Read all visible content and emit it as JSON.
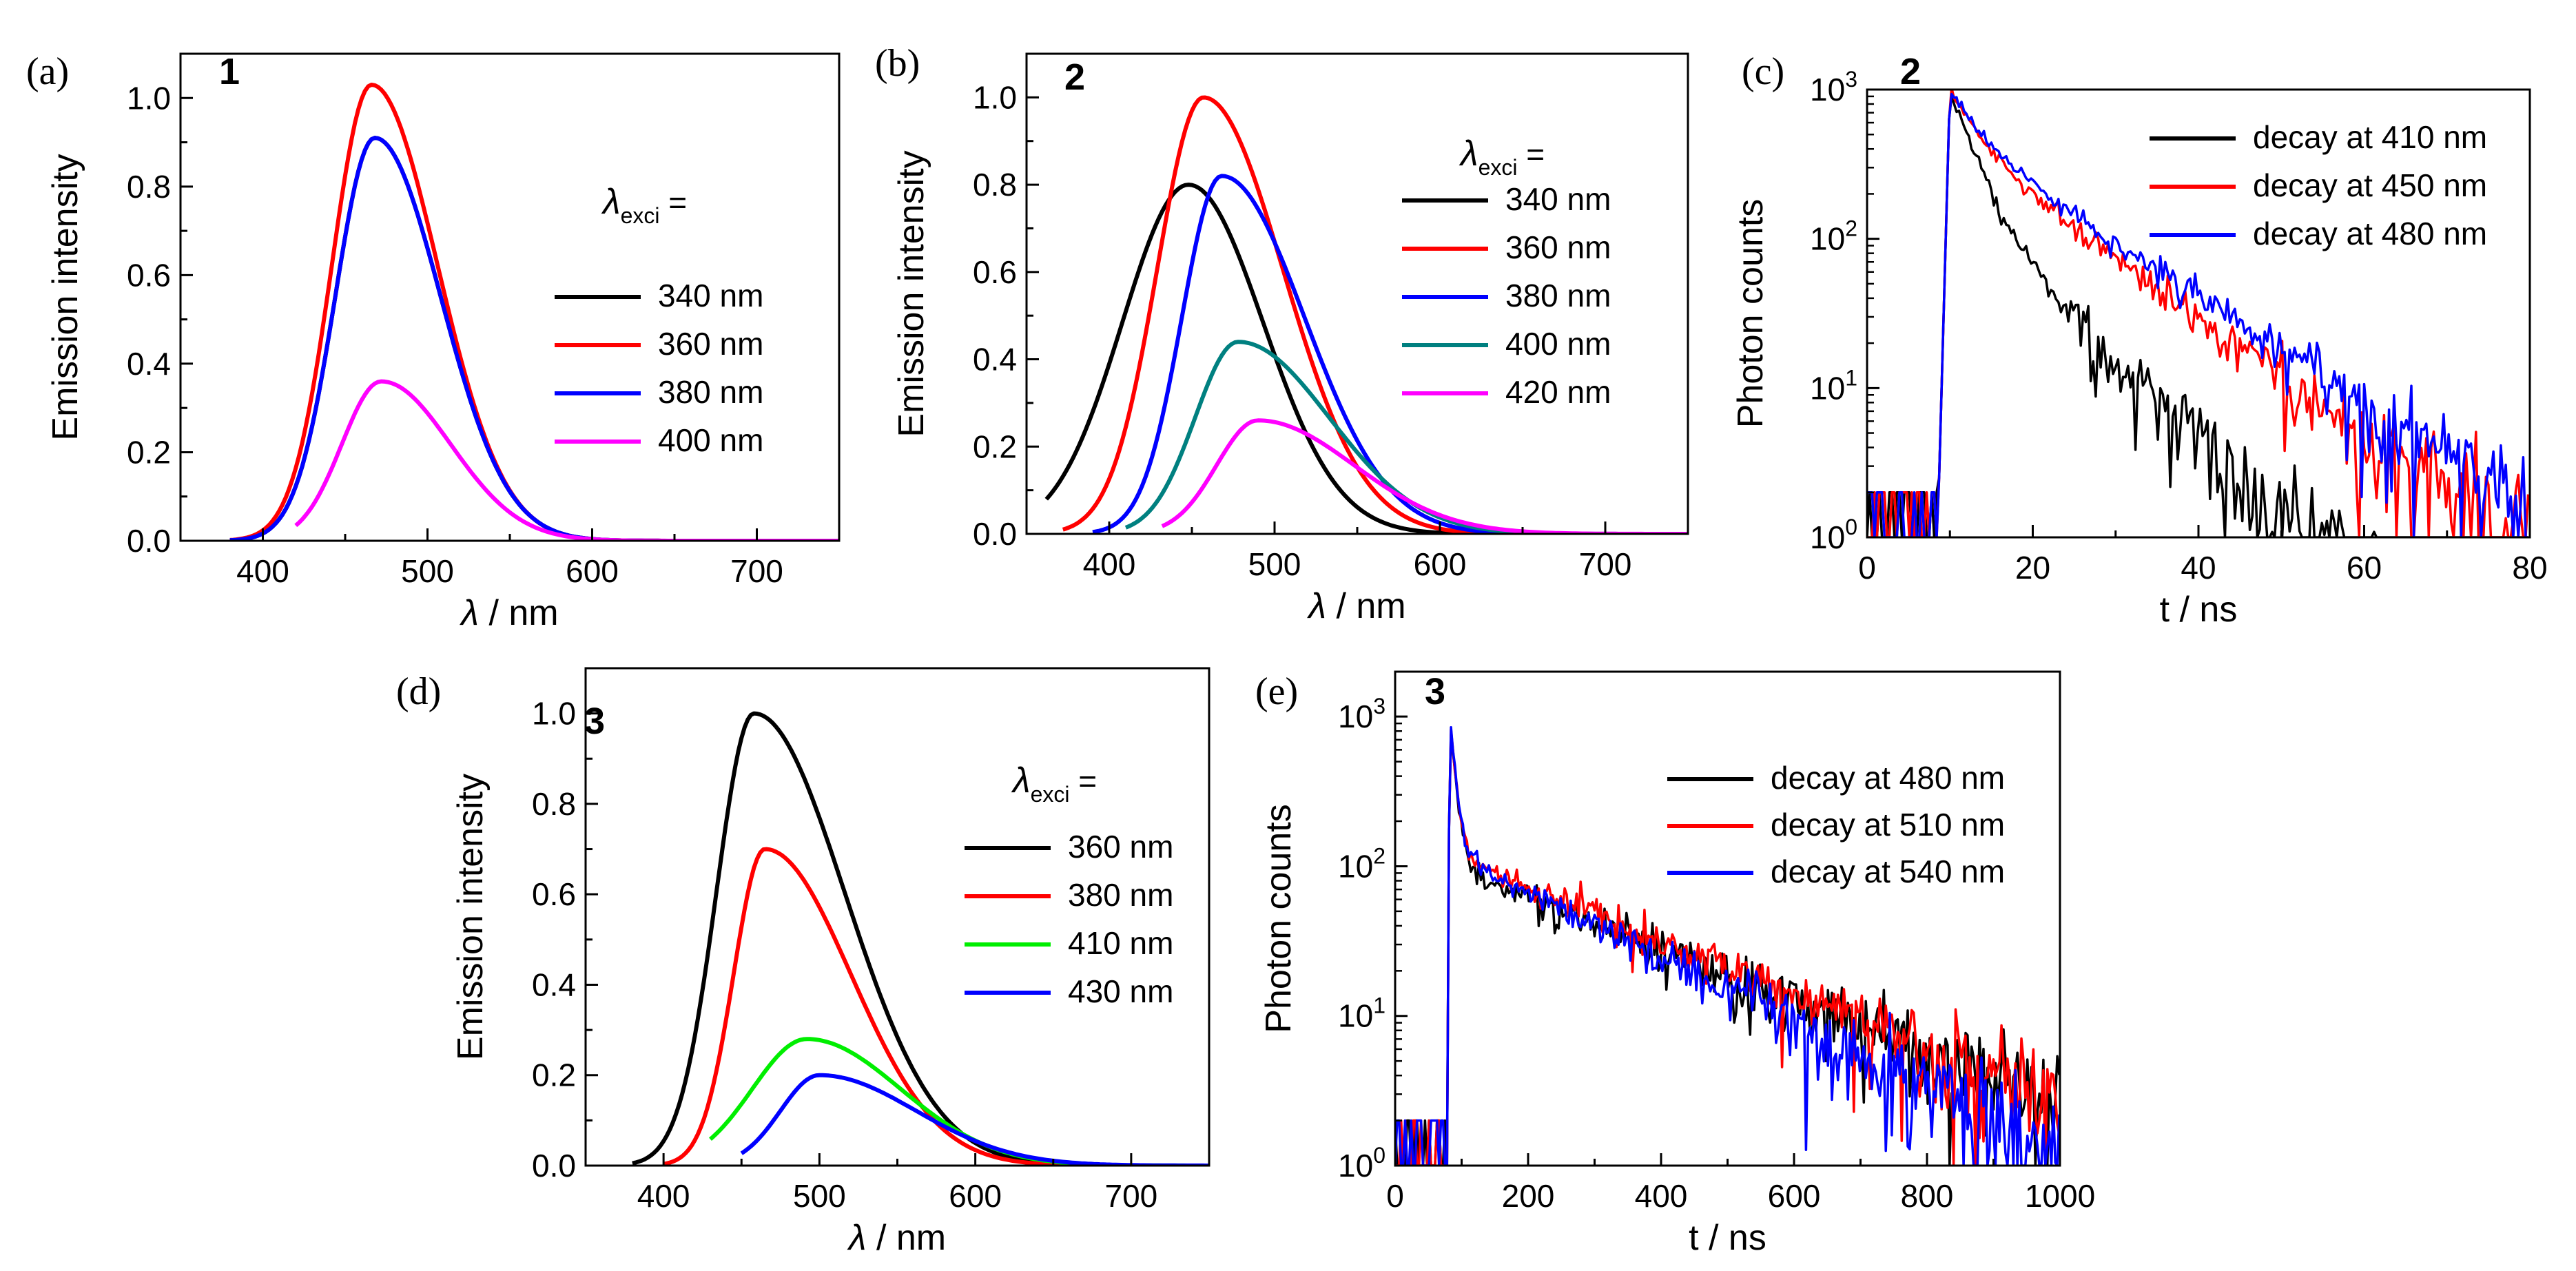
{
  "panels": [
    {
      "label": "(a)",
      "compound": "1",
      "kind": "emission",
      "legend_title": "λexci =",
      "xlabel": "λ / nm",
      "ylabel": "Emission intensity",
      "xlim": [
        350,
        750
      ],
      "ylim": [
        0,
        1.1
      ],
      "xticks": [
        400,
        500,
        600,
        700
      ],
      "yticks": [
        "0.0",
        "0.2",
        "0.4",
        "0.6",
        "0.8",
        "1.0"
      ],
      "series": [
        {
          "name": "340 nm",
          "color": "#000000",
          "start": 380,
          "peak": 468,
          "amp": 0.91,
          "sl": 24,
          "sr": 40
        },
        {
          "name": "360 nm",
          "color": "#ff0000",
          "start": 380,
          "peak": 466,
          "amp": 1.03,
          "sl": 24,
          "sr": 40
        },
        {
          "name": "380 nm",
          "color": "#0000ff",
          "start": 380,
          "peak": 468,
          "amp": 0.91,
          "sl": 24,
          "sr": 40
        },
        {
          "name": "400 nm",
          "color": "#ff00ff",
          "start": 420,
          "peak": 472,
          "amp": 0.36,
          "sl": 24,
          "sr": 42
        }
      ]
    },
    {
      "label": "(b)",
      "compound": "2",
      "kind": "emission",
      "legend_title": "λexci =",
      "xlabel": "λ / nm",
      "ylabel": "Emission intensity",
      "xlim": [
        350,
        750
      ],
      "ylim": [
        0,
        1.1
      ],
      "xticks": [
        400,
        500,
        600,
        700
      ],
      "yticks": [
        "0.0",
        "0.2",
        "0.4",
        "0.6",
        "0.8",
        "1.0"
      ],
      "series": [
        {
          "name": "340 nm",
          "color": "#000000",
          "start": 362,
          "peak": 448,
          "amp": 0.8,
          "sl": 40,
          "sr": 45
        },
        {
          "name": "360 nm",
          "color": "#ff0000",
          "start": 372,
          "peak": 457,
          "amp": 1.0,
          "sl": 28,
          "sr": 48
        },
        {
          "name": "380 nm",
          "color": "#0000ff",
          "start": 390,
          "peak": 468,
          "amp": 0.82,
          "sl": 24,
          "sr": 50
        },
        {
          "name": "400 nm",
          "color": "#008080",
          "start": 410,
          "peak": 478,
          "amp": 0.44,
          "sl": 26,
          "sr": 55
        },
        {
          "name": "420 nm",
          "color": "#ff00ff",
          "start": 432,
          "peak": 490,
          "amp": 0.26,
          "sl": 25,
          "sr": 58
        }
      ]
    },
    {
      "label": "(c)",
      "compound": "2",
      "kind": "decay",
      "xlabel": "t / ns",
      "ylabel": "Photon counts",
      "xlim": [
        0,
        80
      ],
      "ylog": [
        0,
        3
      ],
      "xticks": [
        0,
        20,
        40,
        60,
        80
      ],
      "ytick_base": "10",
      "ytick_exps": [
        "0",
        "1",
        "2",
        "3"
      ],
      "t0": 8.5,
      "tpeak": 10,
      "noise_dt": 0.3,
      "seed": 3,
      "series": [
        {
          "name": "decay at 410 nm",
          "color": "#000000",
          "a1": 0.82,
          "tau1": 2.5,
          "a2": 0.18,
          "tau2": 8
        },
        {
          "name": "decay at 450 nm",
          "color": "#ff0000",
          "a1": 0.55,
          "tau1": 3,
          "a2": 0.45,
          "tau2": 11
        },
        {
          "name": "decay at 480 nm",
          "color": "#0000ff",
          "a1": 0.5,
          "tau1": 3,
          "a2": 0.5,
          "tau2": 12
        }
      ]
    },
    {
      "label": "(d)",
      "compound": "3",
      "kind": "emission",
      "legend_title": "λexci =",
      "xlabel": "λ / nm",
      "ylabel": "Emission intensity",
      "xlim": [
        350,
        750
      ],
      "ylim": [
        0,
        1.1
      ],
      "xticks": [
        400,
        500,
        600,
        700
      ],
      "yticks": [
        "0.0",
        "0.2",
        "0.4",
        "0.6",
        "0.8",
        "1.0"
      ],
      "series": [
        {
          "name": "360 nm",
          "color": "#000000",
          "start": 380,
          "peak": 458,
          "amp": 1.0,
          "sl": 24,
          "sr": 58
        },
        {
          "name": "380 nm",
          "color": "#ff0000",
          "start": 400,
          "peak": 465,
          "amp": 0.7,
          "sl": 20,
          "sr": 55
        },
        {
          "name": "410 nm",
          "color": "#00ee00",
          "start": 430,
          "peak": 492,
          "amp": 0.28,
          "sl": 35,
          "sr": 60
        },
        {
          "name": "430 nm",
          "color": "#0000ff",
          "start": 450,
          "peak": 500,
          "amp": 0.2,
          "sl": 25,
          "sr": 62
        }
      ]
    },
    {
      "label": "(e)",
      "compound": "3",
      "kind": "decay",
      "xlabel": "t / ns",
      "ylabel": "Photon counts",
      "xlim": [
        0,
        1000
      ],
      "ylog": [
        0,
        3.3
      ],
      "xticks": [
        0,
        200,
        400,
        600,
        800,
        1000
      ],
      "ytick_base": "10",
      "ytick_exps": [
        "0",
        "1",
        "2",
        "3"
      ],
      "t0": 78,
      "tpeak": 82,
      "noise_dt": 3,
      "seed": 7,
      "series": [
        {
          "name": "decay at 480 nm",
          "color": "#000000",
          "a1": 0.9,
          "tau1": 8,
          "a2": 0.1,
          "tau2": 250
        },
        {
          "name": "decay at 510 nm",
          "color": "#ff0000",
          "a1": 0.88,
          "tau1": 8,
          "a2": 0.12,
          "tau2": 240
        },
        {
          "name": "decay at 540 nm",
          "color": "#0000ff",
          "a1": 0.88,
          "tau1": 8,
          "a2": 0.12,
          "tau2": 200
        }
      ]
    }
  ],
  "chart_data": [
    {
      "type": "line",
      "title": "(a) 1",
      "xlabel": "λ / nm",
      "ylabel": "Emission intensity",
      "xlim": [
        350,
        750
      ],
      "ylim": [
        0,
        1.1
      ],
      "series": [
        {
          "name": "340 nm",
          "peak_nm": 468,
          "max": 0.91
        },
        {
          "name": "360 nm",
          "peak_nm": 466,
          "max": 1.03
        },
        {
          "name": "380 nm",
          "peak_nm": 468,
          "max": 0.91
        },
        {
          "name": "400 nm",
          "peak_nm": 472,
          "max": 0.36
        }
      ]
    },
    {
      "type": "line",
      "title": "(b) 2",
      "xlabel": "λ / nm",
      "ylabel": "Emission intensity",
      "xlim": [
        350,
        750
      ],
      "ylim": [
        0,
        1.1
      ],
      "series": [
        {
          "name": "340 nm",
          "peak_nm": 448,
          "max": 0.8
        },
        {
          "name": "360 nm",
          "peak_nm": 457,
          "max": 1.0
        },
        {
          "name": "380 nm",
          "peak_nm": 468,
          "max": 0.82
        },
        {
          "name": "400 nm",
          "peak_nm": 478,
          "max": 0.44
        },
        {
          "name": "420 nm",
          "peak_nm": 490,
          "max": 0.26
        }
      ]
    },
    {
      "type": "line",
      "title": "(c) 2",
      "xlabel": "t / ns",
      "ylabel": "Photon counts",
      "xlim": [
        0,
        80
      ],
      "yscale": "log",
      "ylim": [
        1,
        1000
      ],
      "series": [
        {
          "name": "decay at 410 nm",
          "peak_t_ns": 10,
          "peak_counts": 1000
        },
        {
          "name": "decay at 450 nm",
          "peak_t_ns": 10,
          "peak_counts": 1000
        },
        {
          "name": "decay at 480 nm",
          "peak_t_ns": 10,
          "peak_counts": 1000
        }
      ]
    },
    {
      "type": "line",
      "title": "(d) 3",
      "xlabel": "λ / nm",
      "ylabel": "Emission intensity",
      "xlim": [
        350,
        750
      ],
      "ylim": [
        0,
        1.1
      ],
      "series": [
        {
          "name": "360 nm",
          "peak_nm": 458,
          "max": 1.0
        },
        {
          "name": "380 nm",
          "peak_nm": 465,
          "max": 0.7
        },
        {
          "name": "410 nm",
          "peak_nm": 492,
          "max": 0.28
        },
        {
          "name": "430 nm",
          "peak_nm": 500,
          "max": 0.2
        }
      ]
    },
    {
      "type": "line",
      "title": "(e) 3",
      "xlabel": "t / ns",
      "ylabel": "Photon counts",
      "xlim": [
        0,
        1000
      ],
      "yscale": "log",
      "ylim": [
        1,
        2000
      ],
      "series": [
        {
          "name": "decay at 480 nm",
          "peak_t_ns": 82,
          "peak_counts": 1000
        },
        {
          "name": "decay at 510 nm",
          "peak_t_ns": 82,
          "peak_counts": 1000
        },
        {
          "name": "decay at 540 nm",
          "peak_t_ns": 82,
          "peak_counts": 1000
        }
      ]
    }
  ]
}
